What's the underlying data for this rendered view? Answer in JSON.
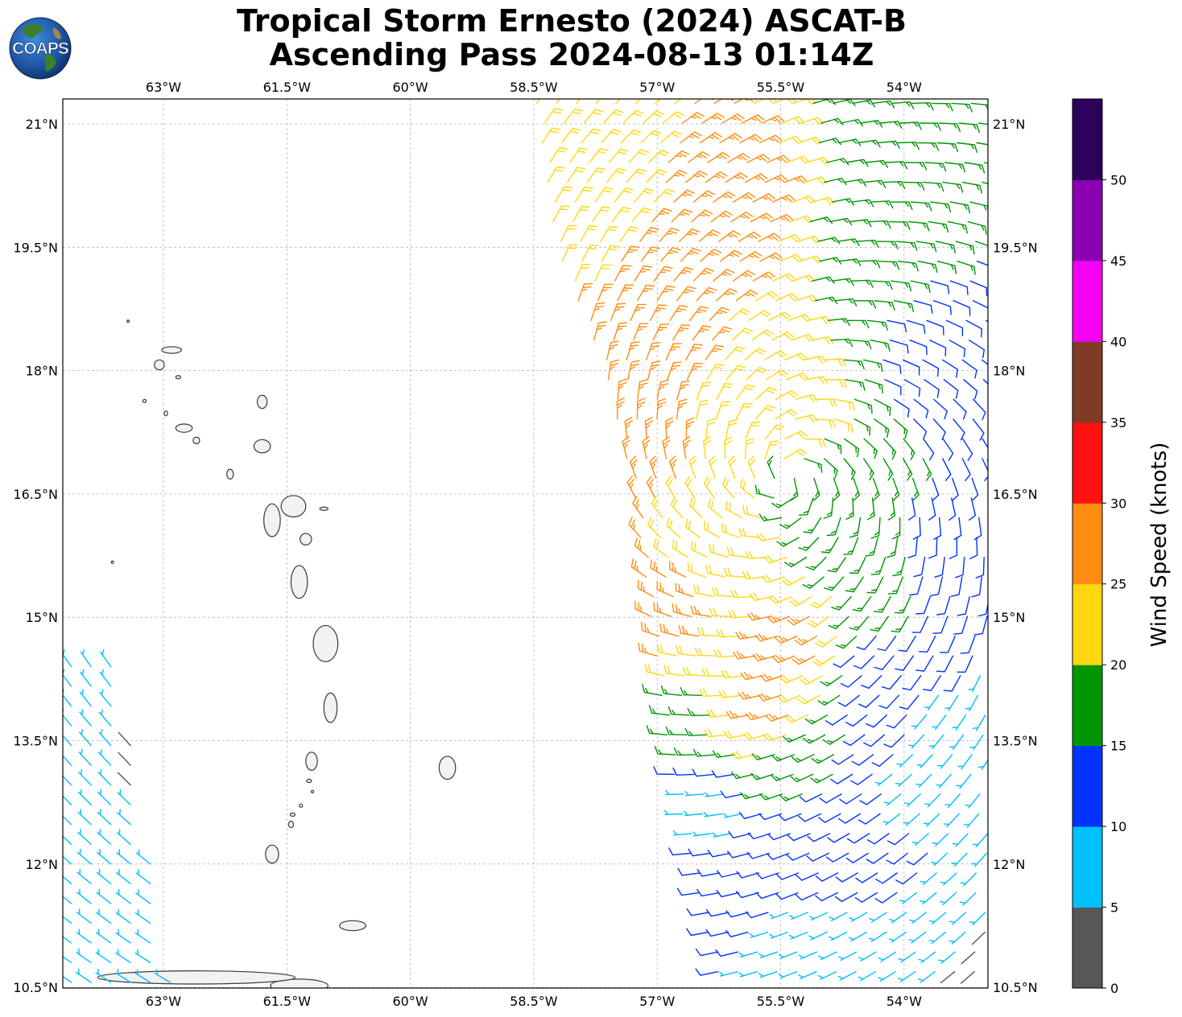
{
  "logo": {
    "text": "COAPS",
    "icon": "coaps-globe-logo"
  },
  "title": {
    "line1": "Tropical Storm Ernesto (2024) ASCAT-B",
    "line2": "Ascending Pass 2024-08-13 01:14Z"
  },
  "map": {
    "lon_range": [
      -64.2,
      -52.95
    ],
    "lat_range": [
      10.5,
      21.3
    ],
    "gridlines": true,
    "lon_ticks": [
      {
        "value": -63,
        "label": "63°W"
      },
      {
        "value": -61.5,
        "label": "61.5°W"
      },
      {
        "value": -60,
        "label": "60°W"
      },
      {
        "value": -58.5,
        "label": "58.5°W"
      },
      {
        "value": -57,
        "label": "57°W"
      },
      {
        "value": -55.5,
        "label": "55.5°W"
      },
      {
        "value": -54,
        "label": "54°W"
      }
    ],
    "lat_ticks": [
      {
        "value": 21,
        "label": "21°N"
      },
      {
        "value": 19.5,
        "label": "19.5°N"
      },
      {
        "value": 18,
        "label": "18°N"
      },
      {
        "value": 16.5,
        "label": "16.5°N"
      },
      {
        "value": 15,
        "label": "15°N"
      },
      {
        "value": 13.5,
        "label": "13.5°N"
      },
      {
        "value": 12,
        "label": "12°N"
      },
      {
        "value": 10.5,
        "label": "10.5°N"
      }
    ],
    "islands": [
      {
        "name": "Anguilla",
        "lon": -62.9,
        "lat": 18.25,
        "rx": 0.12,
        "ry": 0.04
      },
      {
        "name": "St Martin",
        "lon": -63.05,
        "lat": 18.07,
        "rx": 0.06,
        "ry": 0.06
      },
      {
        "name": "St Barthelemy",
        "lon": -62.82,
        "lat": 17.92,
        "rx": 0.03,
        "ry": 0.02
      },
      {
        "name": "Saba",
        "lon": -63.23,
        "lat": 17.63,
        "rx": 0.02,
        "ry": 0.02
      },
      {
        "name": "St Eustatius",
        "lon": -62.97,
        "lat": 17.48,
        "rx": 0.02,
        "ry": 0.03
      },
      {
        "name": "St Kitts",
        "lon": -62.75,
        "lat": 17.3,
        "rx": 0.1,
        "ry": 0.05
      },
      {
        "name": "Nevis",
        "lon": -62.6,
        "lat": 17.15,
        "rx": 0.04,
        "ry": 0.04
      },
      {
        "name": "Barbuda",
        "lon": -61.8,
        "lat": 17.62,
        "rx": 0.06,
        "ry": 0.08
      },
      {
        "name": "Antigua",
        "lon": -61.8,
        "lat": 17.08,
        "rx": 0.1,
        "ry": 0.08
      },
      {
        "name": "Montserrat",
        "lon": -62.19,
        "lat": 16.74,
        "rx": 0.04,
        "ry": 0.06
      },
      {
        "name": "Guadeloupe Basse-Terre",
        "lon": -61.68,
        "lat": 16.18,
        "rx": 0.1,
        "ry": 0.2
      },
      {
        "name": "Guadeloupe Grande-Terre",
        "lon": -61.42,
        "lat": 16.35,
        "rx": 0.15,
        "ry": 0.13
      },
      {
        "name": "Desirade",
        "lon": -61.05,
        "lat": 16.32,
        "rx": 0.05,
        "ry": 0.02
      },
      {
        "name": "Marie-Galante",
        "lon": -61.27,
        "lat": 15.95,
        "rx": 0.07,
        "ry": 0.07
      },
      {
        "name": "Dominica",
        "lon": -61.35,
        "lat": 15.43,
        "rx": 0.1,
        "ry": 0.2
      },
      {
        "name": "Martinique",
        "lon": -61.03,
        "lat": 14.68,
        "rx": 0.15,
        "ry": 0.22
      },
      {
        "name": "St Lucia",
        "lon": -60.97,
        "lat": 13.9,
        "rx": 0.08,
        "ry": 0.18
      },
      {
        "name": "St Vincent",
        "lon": -61.2,
        "lat": 13.25,
        "rx": 0.07,
        "ry": 0.11
      },
      {
        "name": "Bequia",
        "lon": -61.23,
        "lat": 13.01,
        "rx": 0.03,
        "ry": 0.02
      },
      {
        "name": "Mustique",
        "lon": -61.19,
        "lat": 12.88,
        "rx": 0.015,
        "ry": 0.015
      },
      {
        "name": "Canouan",
        "lon": -61.33,
        "lat": 12.71,
        "rx": 0.02,
        "ry": 0.02
      },
      {
        "name": "Union",
        "lon": -61.43,
        "lat": 12.6,
        "rx": 0.03,
        "ry": 0.02
      },
      {
        "name": "Carriacou",
        "lon": -61.45,
        "lat": 12.48,
        "rx": 0.03,
        "ry": 0.04
      },
      {
        "name": "Grenada",
        "lon": -61.68,
        "lat": 12.12,
        "rx": 0.08,
        "ry": 0.11
      },
      {
        "name": "Barbados",
        "lon": -59.55,
        "lat": 13.17,
        "rx": 0.1,
        "ry": 0.14
      },
      {
        "name": "Tobago",
        "lon": -60.7,
        "lat": 11.25,
        "rx": 0.16,
        "ry": 0.06
      },
      {
        "name": "Trinidad",
        "lon": -61.35,
        "lat": 10.52,
        "rx": 0.35,
        "ry": 0.08
      },
      {
        "name": "Venezuela coast",
        "lon": -62.6,
        "lat": 10.62,
        "rx": 1.2,
        "ry": 0.08
      },
      {
        "name": "Aves",
        "lon": -63.62,
        "lat": 15.67,
        "rx": 0.01,
        "ry": 0.01
      },
      {
        "name": "Sombrero",
        "lon": -63.43,
        "lat": 18.6,
        "rx": 0.01,
        "ry": 0.01
      }
    ]
  },
  "colorbar": {
    "label": "Wind Speed (knots)",
    "tick_labels": [
      "0",
      "5",
      "10",
      "15",
      "20",
      "25",
      "30",
      "35",
      "40",
      "45",
      "50"
    ],
    "bins": [
      {
        "min": 0,
        "max": 5,
        "color": "#575757"
      },
      {
        "min": 5,
        "max": 10,
        "color": "#00bfff"
      },
      {
        "min": 10,
        "max": 15,
        "color": "#0033ff"
      },
      {
        "min": 15,
        "max": 20,
        "color": "#009600"
      },
      {
        "min": 20,
        "max": 25,
        "color": "#ffd711"
      },
      {
        "min": 25,
        "max": 30,
        "color": "#ff8d11"
      },
      {
        "min": 30,
        "max": 35,
        "color": "#ff1111"
      },
      {
        "min": 35,
        "max": 40,
        "color": "#7f3b26"
      },
      {
        "min": 40,
        "max": 45,
        "color": "#f500f5"
      },
      {
        "min": 45,
        "max": 50,
        "color": "#8a00b3"
      },
      {
        "min": 50,
        "max": 55,
        "color": "#2d0059"
      }
    ]
  },
  "wind_field": {
    "main_swath": {
      "east_edge_lon": -52.95,
      "west_edge": [
        {
          "lat": 21.3,
          "lon": -58.55
        },
        {
          "lat": 19.5,
          "lon": -58.3
        },
        {
          "lat": 18.0,
          "lon": -57.7
        },
        {
          "lat": 16.5,
          "lon": -57.35
        },
        {
          "lat": 15.0,
          "lon": -57.15
        },
        {
          "lat": 13.5,
          "lon": -56.95
        },
        {
          "lat": 12.0,
          "lon": -56.65
        },
        {
          "lat": 10.5,
          "lon": -56.3
        }
      ]
    },
    "west_swath": {
      "west_edge_lon": -64.2,
      "east_edge": [
        {
          "lat": 14.4,
          "lon": -63.5
        },
        {
          "lat": 13.0,
          "lon": -63.35
        },
        {
          "lat": 11.5,
          "lon": -63.05
        },
        {
          "lat": 10.5,
          "lon": -62.9
        }
      ]
    },
    "speed_regions": [
      {
        "lon": -56.2,
        "lat": 20.1,
        "speed": 27
      },
      {
        "lon": -56.8,
        "lat": 19.3,
        "speed": 26
      },
      {
        "lon": -57.2,
        "lat": 18.2,
        "speed": 26
      },
      {
        "lon": -57.4,
        "lat": 16.9,
        "speed": 27
      },
      {
        "lon": -56.9,
        "lat": 15.0,
        "speed": 26
      },
      {
        "lon": -55.3,
        "lat": 14.7,
        "speed": 26
      },
      {
        "lon": -55.6,
        "lat": 13.8,
        "speed": 26
      },
      {
        "lon": -55.6,
        "lat": 17.3,
        "speed": 22
      },
      {
        "lon": -57.8,
        "lat": 20.2,
        "speed": 22
      },
      {
        "lon": -56.0,
        "lat": 16.0,
        "speed": 22
      },
      {
        "lon": -54.0,
        "lat": 20.8,
        "speed": 17
      },
      {
        "lon": -54.3,
        "lat": 19.6,
        "speed": 17
      },
      {
        "lon": -55.0,
        "lat": 16.5,
        "speed": 17
      },
      {
        "lon": -54.2,
        "lat": 15.6,
        "speed": 17
      },
      {
        "lon": -55.3,
        "lat": 13.2,
        "speed": 17
      },
      {
        "lon": -56.8,
        "lat": 13.6,
        "speed": 17
      },
      {
        "lon": -53.4,
        "lat": 18.3,
        "speed": 12
      },
      {
        "lon": -53.5,
        "lat": 15.8,
        "speed": 12
      },
      {
        "lon": -54.3,
        "lat": 14.2,
        "speed": 12
      },
      {
        "lon": -55.0,
        "lat": 12.4,
        "speed": 12
      },
      {
        "lon": -56.3,
        "lat": 11.9,
        "speed": 12
      },
      {
        "lon": -54.3,
        "lat": 12.3,
        "speed": 13
      },
      {
        "lon": -53.3,
        "lat": 13.5,
        "speed": 8
      },
      {
        "lon": -53.8,
        "lat": 12.7,
        "speed": 8
      },
      {
        "lon": -55.0,
        "lat": 10.9,
        "speed": 8
      },
      {
        "lon": -53.6,
        "lat": 11.2,
        "speed": 8
      },
      {
        "lon": -56.4,
        "lat": 12.6,
        "speed": 8
      },
      {
        "lon": -63.8,
        "lat": 12.5,
        "speed": 8
      },
      {
        "lon": -63.5,
        "lat": 11.0,
        "speed": 8
      },
      {
        "lon": -63.0,
        "lat": 12.8,
        "speed": 3
      },
      {
        "lon": -53.1,
        "lat": 10.7,
        "speed": 3
      }
    ]
  }
}
